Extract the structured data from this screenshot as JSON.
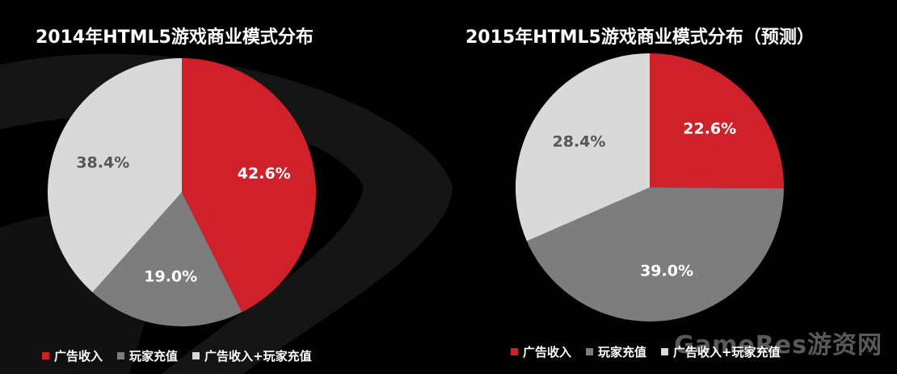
{
  "watermark": "GameRes游资网",
  "colors": {
    "ad": "#d0202a",
    "player": "#7d7d7d",
    "mixed": "#d9d9d9",
    "label_light": "#ffffff",
    "label_dark": "#555555"
  },
  "chart_data": [
    {
      "type": "pie",
      "title": "2014年HTML5游戏商业模式分布",
      "legend_position": "bottom-left",
      "slices": [
        {
          "label": "广告收入",
          "value": 42.6,
          "display": "42.6%",
          "color": "#d0202a"
        },
        {
          "label": "玩家充值",
          "value": 19.0,
          "display": "19.0%",
          "color": "#7d7d7d"
        },
        {
          "label": "广告收入+玩家充值",
          "value": 38.4,
          "display": "38.4%",
          "color": "#d9d9d9"
        }
      ]
    },
    {
      "type": "pie",
      "title": "2015年HTML5游戏商业模式分布（预测）",
      "legend_position": "bottom-left",
      "slices": [
        {
          "label": "广告收入",
          "value": 22.6,
          "display": "22.6%",
          "color": "#d0202a"
        },
        {
          "label": "玩家充值",
          "value": 39.0,
          "display": "39.0%",
          "color": "#7d7d7d"
        },
        {
          "label": "广告收入+玩家充值",
          "value": 28.4,
          "display": "28.4%",
          "color": "#d9d9d9"
        }
      ]
    }
  ]
}
